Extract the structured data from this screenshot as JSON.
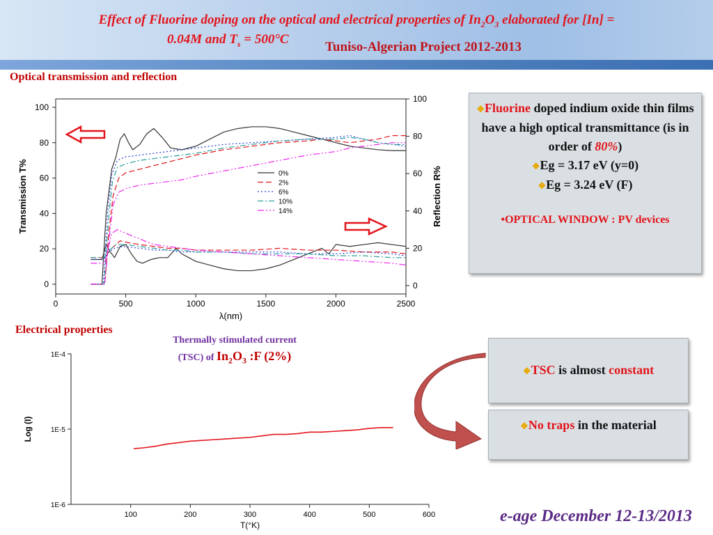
{
  "header": {
    "title_line1_pre": "Effect of Fluorine doping on the optical and electrical properties of In",
    "title_sub2": "2",
    "title_o": "O",
    "title_sub3": "3",
    "title_line1_post": "  elaborated  for [In] =",
    "title_line2_pre": "0.04M  and  T",
    "title_sub_s": "s",
    "title_line2_post": " = 500°C",
    "project": "Tuniso-Algerian Project 2012-2013"
  },
  "sections": {
    "optical": "Optical transmission and reflection",
    "electrical": "Electrical properties"
  },
  "box_optical": {
    "line1_red": "Fluorine",
    "line1_rest": " doped indium oxide thin films have a high optical transmittance (is   in order of ",
    "line1_pct": "80%",
    "line1_close": ")",
    "eg1": "Eg = 3.17 eV (y=0)",
    "eg2": "Eg = 3.24 eV   (F)",
    "window": "•OPTICAL WINDOW : PV devices"
  },
  "box_tsc": {
    "red1": "TSC",
    "mid": " is almost ",
    "red2": "constant"
  },
  "box_traps": {
    "red": "No traps",
    "rest": " in the material"
  },
  "tsc_title": {
    "line1": "Thermally stimulated current",
    "line2_pre": "(TSC) of ",
    "formula": "In2O3 :F (2%)"
  },
  "footer": {
    "text": "e-age December 12-13/2013"
  },
  "chart_data": [
    {
      "type": "line",
      "xlabel": "λ(nm)",
      "ylabel": "Transmission T%",
      "y2label": "Reflection R%",
      "xlim": [
        0,
        2500
      ],
      "ylim": [
        0,
        100
      ],
      "y2lim": [
        0,
        100
      ],
      "x_ticks": [
        0,
        500,
        1000,
        1500,
        2000,
        2500
      ],
      "y_ticks": [
        0,
        20,
        40,
        60,
        80,
        100
      ],
      "y2_ticks": [
        0,
        20,
        40,
        60,
        80,
        100
      ],
      "legend_position": "center-right",
      "series": [
        {
          "name": "0%",
          "color": "#333333",
          "dash": "",
          "transmission": [
            [
              250,
              0
            ],
            [
              330,
              0
            ],
            [
              360,
              40
            ],
            [
              400,
              65
            ],
            [
              430,
              72
            ],
            [
              460,
              82
            ],
            [
              490,
              85
            ],
            [
              520,
              80
            ],
            [
              550,
              76
            ],
            [
              600,
              79
            ],
            [
              650,
              85
            ],
            [
              700,
              88
            ],
            [
              760,
              83
            ],
            [
              820,
              77
            ],
            [
              900,
              76
            ],
            [
              1000,
              78
            ],
            [
              1100,
              82
            ],
            [
              1200,
              86
            ],
            [
              1300,
              88
            ],
            [
              1400,
              89
            ],
            [
              1500,
              89
            ],
            [
              1600,
              88
            ],
            [
              1700,
              86
            ],
            [
              1800,
              84
            ],
            [
              1900,
              82
            ],
            [
              2000,
              80
            ],
            [
              2100,
              78
            ],
            [
              2200,
              77
            ],
            [
              2300,
              76
            ],
            [
              2400,
              75.5
            ],
            [
              2500,
              75.5
            ]
          ],
          "reflection": [
            [
              250,
              14
            ],
            [
              330,
              14
            ],
            [
              360,
              22
            ],
            [
              390,
              18
            ],
            [
              420,
              15
            ],
            [
              460,
              21
            ],
            [
              500,
              22
            ],
            [
              540,
              17
            ],
            [
              580,
              13
            ],
            [
              620,
              12
            ],
            [
              680,
              14
            ],
            [
              740,
              15
            ],
            [
              800,
              15
            ],
            [
              860,
              20
            ],
            [
              900,
              17
            ],
            [
              950,
              15
            ],
            [
              1000,
              13
            ],
            [
              1100,
              11
            ],
            [
              1200,
              9
            ],
            [
              1300,
              8
            ],
            [
              1400,
              8
            ],
            [
              1500,
              9
            ],
            [
              1600,
              11
            ],
            [
              1700,
              14
            ],
            [
              1800,
              17
            ],
            [
              1900,
              20
            ],
            [
              1950,
              17
            ],
            [
              2000,
              22
            ],
            [
              2100,
              21
            ],
            [
              2200,
              22
            ],
            [
              2300,
              23
            ],
            [
              2400,
              22
            ],
            [
              2500,
              21
            ]
          ]
        },
        {
          "name": "2%",
          "color": "#e3141b",
          "dash": "8,4",
          "transmission": [
            [
              250,
              0
            ],
            [
              350,
              0
            ],
            [
              380,
              30
            ],
            [
              410,
              50
            ],
            [
              450,
              60
            ],
            [
              500,
              63
            ],
            [
              600,
              65
            ],
            [
              700,
              67
            ],
            [
              800,
              69
            ],
            [
              900,
              71
            ],
            [
              1000,
              73
            ],
            [
              1200,
              76
            ],
            [
              1400,
              78
            ],
            [
              1600,
              80
            ],
            [
              1800,
              81
            ],
            [
              1900,
              82
            ],
            [
              2000,
              81
            ],
            [
              2100,
              80
            ],
            [
              2200,
              81
            ],
            [
              2300,
              82
            ],
            [
              2400,
              84
            ],
            [
              2500,
              84
            ]
          ],
          "reflection": [
            [
              250,
              15
            ],
            [
              350,
              15
            ],
            [
              400,
              20
            ],
            [
              460,
              24
            ],
            [
              520,
              23
            ],
            [
              600,
              22
            ],
            [
              700,
              21
            ],
            [
              800,
              20
            ],
            [
              900,
              20
            ],
            [
              1000,
              19
            ],
            [
              1200,
              19
            ],
            [
              1400,
              19
            ],
            [
              1600,
              20
            ],
            [
              1800,
              19
            ],
            [
              2000,
              19
            ],
            [
              2200,
              18
            ],
            [
              2400,
              18
            ],
            [
              2500,
              17
            ]
          ]
        },
        {
          "name": "6%",
          "color": "#2b3fd6",
          "dash": "2,3",
          "transmission": [
            [
              250,
              0
            ],
            [
              340,
              0
            ],
            [
              370,
              40
            ],
            [
              400,
              62
            ],
            [
              440,
              70
            ],
            [
              500,
              72
            ],
            [
              600,
              73
            ],
            [
              700,
              74
            ],
            [
              800,
              75
            ],
            [
              900,
              76
            ],
            [
              1000,
              77
            ],
            [
              1200,
              79
            ],
            [
              1400,
              80
            ],
            [
              1600,
              81
            ],
            [
              1800,
              82
            ],
            [
              2000,
              83
            ],
            [
              2100,
              84
            ],
            [
              2200,
              82
            ],
            [
              2300,
              80
            ],
            [
              2400,
              79
            ],
            [
              2500,
              78
            ]
          ],
          "reflection": [
            [
              250,
              14
            ],
            [
              340,
              14
            ],
            [
              380,
              18
            ],
            [
              420,
              20
            ],
            [
              480,
              21
            ],
            [
              600,
              20
            ],
            [
              700,
              19
            ],
            [
              800,
              19
            ],
            [
              900,
              18
            ],
            [
              1000,
              18
            ],
            [
              1200,
              18
            ],
            [
              1400,
              18
            ],
            [
              1600,
              18
            ],
            [
              1800,
              17
            ],
            [
              2000,
              17
            ],
            [
              2200,
              18
            ],
            [
              2400,
              17
            ],
            [
              2500,
              16
            ]
          ]
        },
        {
          "name": "10%",
          "color": "#2a9d9d",
          "dash": "8,3,2,3",
          "transmission": [
            [
              250,
              0
            ],
            [
              345,
              0
            ],
            [
              375,
              35
            ],
            [
              405,
              58
            ],
            [
              440,
              66
            ],
            [
              500,
              68
            ],
            [
              600,
              70
            ],
            [
              700,
              71
            ],
            [
              800,
              72
            ],
            [
              900,
              73
            ],
            [
              1000,
              74
            ],
            [
              1200,
              77
            ],
            [
              1400,
              79
            ],
            [
              1600,
              81
            ],
            [
              1800,
              82
            ],
            [
              2000,
              82
            ],
            [
              2100,
              83
            ],
            [
              2200,
              82
            ],
            [
              2300,
              80
            ],
            [
              2400,
              79
            ],
            [
              2500,
              79
            ]
          ],
          "reflection": [
            [
              250,
              15
            ],
            [
              345,
              15
            ],
            [
              385,
              19
            ],
            [
              430,
              22
            ],
            [
              500,
              22
            ],
            [
              600,
              21
            ],
            [
              700,
              20
            ],
            [
              800,
              19
            ],
            [
              900,
              19
            ],
            [
              1000,
              18
            ],
            [
              1200,
              18
            ],
            [
              1400,
              17
            ],
            [
              1600,
              17
            ],
            [
              1800,
              17
            ],
            [
              2000,
              16
            ],
            [
              2200,
              16
            ],
            [
              2400,
              15
            ],
            [
              2500,
              15
            ]
          ]
        },
        {
          "name": "14%",
          "color": "#ee22ee",
          "dash": "9,3,2,3,2,3",
          "transmission": [
            [
              250,
              0
            ],
            [
              350,
              0
            ],
            [
              380,
              25
            ],
            [
              410,
              45
            ],
            [
              450,
              52
            ],
            [
              500,
              54
            ],
            [
              600,
              56
            ],
            [
              700,
              57
            ],
            [
              800,
              58
            ],
            [
              900,
              59
            ],
            [
              1000,
              61
            ],
            [
              1200,
              64
            ],
            [
              1400,
              67
            ],
            [
              1600,
              70
            ],
            [
              1800,
              73
            ],
            [
              2000,
              75
            ],
            [
              2100,
              77
            ],
            [
              2200,
              78
            ],
            [
              2300,
              79
            ],
            [
              2400,
              80
            ],
            [
              2500,
              80
            ]
          ],
          "reflection": [
            [
              250,
              12
            ],
            [
              350,
              12
            ],
            [
              400,
              28
            ],
            [
              440,
              30
            ],
            [
              500,
              28
            ],
            [
              600,
              25
            ],
            [
              700,
              22
            ],
            [
              800,
              21
            ],
            [
              900,
              20
            ],
            [
              1000,
              19
            ],
            [
              1200,
              18
            ],
            [
              1400,
              17
            ],
            [
              1600,
              16
            ],
            [
              1800,
              15
            ],
            [
              2000,
              14
            ],
            [
              2200,
              13
            ],
            [
              2400,
              12
            ],
            [
              2500,
              11
            ]
          ]
        }
      ]
    },
    {
      "type": "line",
      "xlabel": "T(°K)",
      "ylabel": "Log (I)",
      "xlim": [
        0,
        600
      ],
      "ylim_log": [
        -6,
        -4
      ],
      "x_ticks": [
        100,
        200,
        300,
        400,
        500,
        600
      ],
      "y_ticks": [
        "1E-6",
        "1E-5",
        "1E-4"
      ],
      "series": [
        {
          "color": "#e3141b",
          "x": [
            105,
            120,
            140,
            160,
            180,
            200,
            220,
            240,
            260,
            280,
            300,
            320,
            340,
            360,
            380,
            400,
            420,
            440,
            460,
            480,
            500,
            520,
            540
          ],
          "log_i": [
            -5.26,
            -5.25,
            -5.23,
            -5.2,
            -5.18,
            -5.16,
            -5.15,
            -5.14,
            -5.13,
            -5.12,
            -5.11,
            -5.09,
            -5.07,
            -5.07,
            -5.06,
            -5.04,
            -5.04,
            -5.03,
            -5.02,
            -5.01,
            -4.99,
            -4.98,
            -4.98
          ]
        }
      ]
    }
  ]
}
